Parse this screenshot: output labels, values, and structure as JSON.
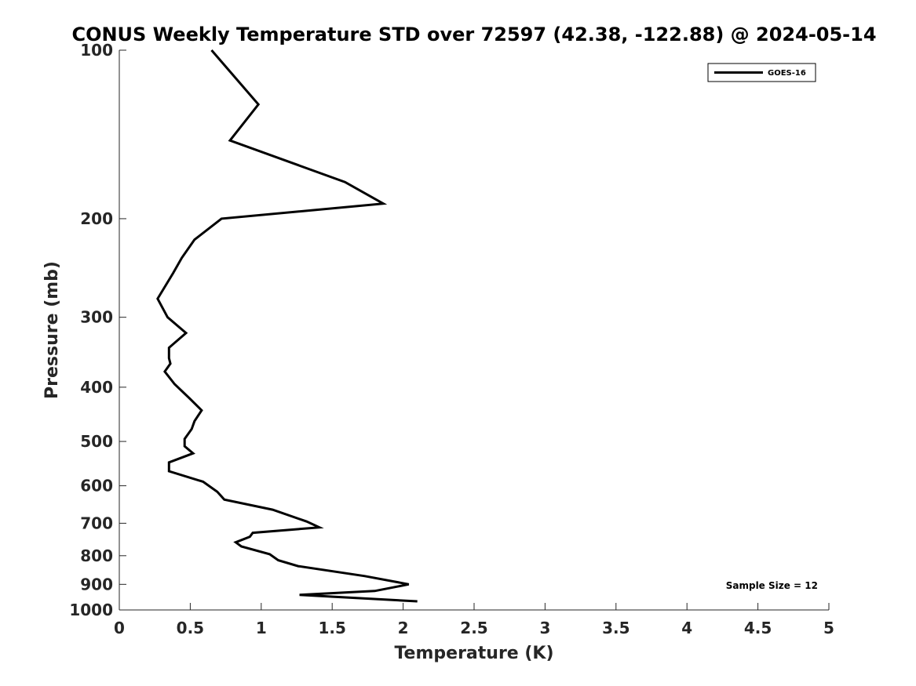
{
  "chart_data": {
    "type": "line",
    "title": "CONUS Weekly Temperature STD over 72597 (42.38, -122.88) @ 2024-05-14",
    "xlabel": "Temperature (K)",
    "ylabel": "Pressure (mb)",
    "xlim": [
      0,
      5
    ],
    "ylim": [
      100,
      1000
    ],
    "yscale": "log",
    "y_reversed": true,
    "grid": false,
    "legend_position": "top-right",
    "x_ticks": [
      0,
      0.5,
      1,
      1.5,
      2,
      2.5,
      3,
      3.5,
      4,
      4.5,
      5
    ],
    "x_tick_labels": [
      "0",
      "0.5",
      "1",
      "1.5",
      "2",
      "2.5",
      "3",
      "3.5",
      "4",
      "4.5",
      "5"
    ],
    "y_ticks": [
      100,
      200,
      300,
      400,
      500,
      600,
      700,
      800,
      900,
      1000
    ],
    "y_tick_labels": [
      "100",
      "200",
      "300",
      "400",
      "500",
      "600",
      "700",
      "800",
      "900",
      "1000"
    ],
    "series": [
      {
        "name": "GOES-16",
        "color": "#000000",
        "x": [
          0.65,
          0.98,
          0.78,
          1.59,
          1.86,
          0.72,
          0.53,
          0.44,
          0.38,
          0.27,
          0.34,
          0.47,
          0.35,
          0.35,
          0.36,
          0.32,
          0.39,
          0.5,
          0.58,
          0.53,
          0.51,
          0.46,
          0.46,
          0.52,
          0.35,
          0.35,
          0.59,
          0.69,
          0.74,
          1.08,
          1.32,
          1.41,
          0.94,
          0.92,
          0.82,
          0.86,
          1.06,
          1.12,
          1.26,
          1.73,
          2.04,
          1.8,
          1.27,
          2.1
        ],
        "y": [
          100,
          125,
          145,
          172,
          188,
          200,
          218,
          235,
          250,
          278,
          300,
          320,
          340,
          355,
          363,
          375,
          395,
          420,
          440,
          460,
          475,
          495,
          510,
          525,
          545,
          565,
          590,
          615,
          635,
          662,
          695,
          712,
          728,
          740,
          757,
          770,
          795,
          815,
          835,
          870,
          900,
          925,
          940,
          965
        ]
      }
    ],
    "annotations": [
      "Sample Size = 12"
    ]
  }
}
